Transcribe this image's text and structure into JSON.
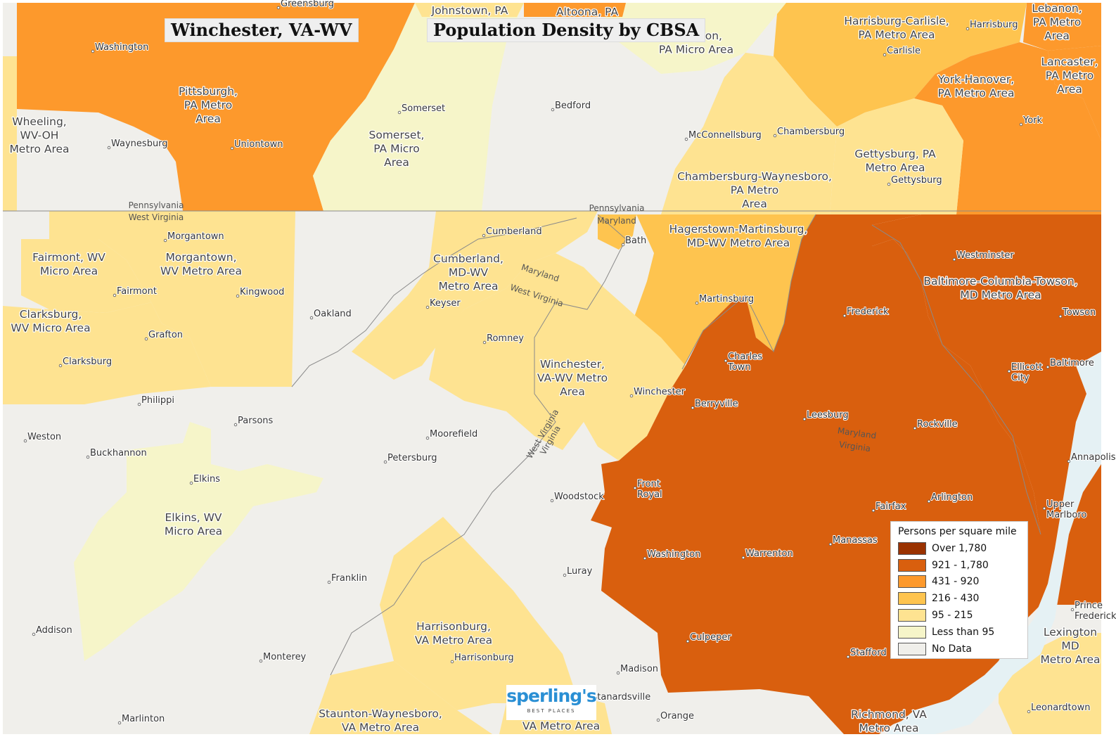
{
  "title": "Winchester, VA-WV",
  "subtitle": "Population Density by CBSA",
  "legend": {
    "title": "Persons per square mile",
    "items": [
      {
        "label": "Over 1,780",
        "color": "#9a3200"
      },
      {
        "label": "921 - 1,780",
        "color": "#d95f0e"
      },
      {
        "label": "431 - 920",
        "color": "#fd992c"
      },
      {
        "label": "216 - 430",
        "color": "#fec44f"
      },
      {
        "label": "95 - 215",
        "color": "#fee391"
      },
      {
        "label": "Less than 95",
        "color": "#f6f5c9"
      },
      {
        "label": "No Data",
        "color": "#f0efeb"
      }
    ]
  },
  "logo": {
    "brand": "sperling's",
    "tagline": "BEST PLACES"
  },
  "metro_areas": [
    {
      "name": "Pittsburgh, PA Metro Area",
      "lines": [
        "Pittsburgh,",
        "PA Metro",
        "Area"
      ]
    },
    {
      "name": "Wheeling, WV-OH Metro Area",
      "lines": [
        "Wheeling,",
        "WV-OH",
        "Metro Area"
      ]
    },
    {
      "name": "Somerset, PA Micro Area",
      "lines": [
        "Somerset,",
        "PA Micro",
        "Area"
      ]
    },
    {
      "name": "Huntingdon, PA Micro Area",
      "lines": [
        "ntingdon,",
        "PA Micro Area"
      ]
    },
    {
      "name": "Harrisburg-Carlisle, PA Metro Area",
      "lines": [
        "Harrisburg-Carlisle,",
        "PA Metro Area"
      ]
    },
    {
      "name": "Lebanon, PA Metro Area",
      "lines": [
        "Lebanon,",
        "PA Metro",
        "Area"
      ]
    },
    {
      "name": "Lancaster, PA Metro Area",
      "lines": [
        "Lancaster,",
        "PA Metro",
        "Area"
      ]
    },
    {
      "name": "York-Hanover, PA Metro Area",
      "lines": [
        "York-Hanover,",
        "PA Metro Area"
      ]
    },
    {
      "name": "Gettysburg, PA Metro Area",
      "lines": [
        "Gettysburg, PA",
        "Metro Area"
      ]
    },
    {
      "name": "Chambersburg-Waynesboro, PA Metro Area",
      "lines": [
        "Chambersburg-Waynesboro,",
        "PA Metro",
        "Area"
      ]
    },
    {
      "name": "Hagerstown-Martinsburg, MD-WV Metro Area",
      "lines": [
        "Hagerstown-Martinsburg,",
        "MD-WV Metro Area"
      ]
    },
    {
      "name": "Cumberland, MD-WV Metro Area",
      "lines": [
        "Cumberland,",
        "MD-WV",
        "Metro Area"
      ]
    },
    {
      "name": "Fairmont, WV Micro Area",
      "lines": [
        "Fairmont, WV",
        "Micro Area"
      ]
    },
    {
      "name": "Morgantown, WV Metro Area",
      "lines": [
        "Morgantown,",
        "WV Metro Area"
      ]
    },
    {
      "name": "Clarksburg, WV Micro Area",
      "lines": [
        "Clarksburg,",
        "WV Micro Area"
      ]
    },
    {
      "name": "Baltimore-Columbia-Towson, MD Metro Area",
      "lines": [
        "Baltimore-Columbia-Towson,",
        "MD Metro Area"
      ]
    },
    {
      "name": "Winchester, VA-WV Metro Area",
      "lines": [
        "Winchester,",
        "VA-WV Metro",
        "Area"
      ]
    },
    {
      "name": "Elkins, WV Micro Area",
      "lines": [
        "Elkins, WV",
        "Micro Area"
      ]
    },
    {
      "name": "Harrisonburg, VA Metro Area",
      "lines": [
        "Harrisonburg,",
        "VA Metro Area"
      ]
    },
    {
      "name": "Staunton-Waynesboro, VA Metro Area",
      "lines": [
        "Staunton-Waynesboro,",
        "VA Metro Area"
      ]
    },
    {
      "name": "Charlottesville, VA Metro Area",
      "lines": [
        "e,",
        "VA Metro Area"
      ]
    },
    {
      "name": "Richmond, VA Metro Area",
      "lines": [
        "Richmond, VA",
        "Metro Area"
      ]
    },
    {
      "name": "Lexington Park, MD Metro Area",
      "lines": [
        "Lexington",
        "MD",
        "Metro Area"
      ]
    },
    {
      "name": "Johnstown, PA",
      "lines": [
        "Johnstown, PA"
      ]
    },
    {
      "name": "Altoona, PA",
      "lines": [
        "Altoona, PA"
      ]
    }
  ],
  "cities": [
    "Greensburg",
    "Washington",
    "Waynesburg",
    "Uniontown",
    "Somerset",
    "Bedford",
    "McConnellsburg",
    "Chambersburg",
    "Harrisburg",
    "Carlisle",
    "York",
    "Gettysburg",
    "Morgantown",
    "Fairmont",
    "Kingwood",
    "Grafton",
    "Clarksburg",
    "Oakland",
    "Cumberland",
    "Keyser",
    "Romney",
    "Bath",
    "Martinsburg",
    "Charles Town",
    "Frederick",
    "Westminster",
    "Towson",
    "Baltimore",
    "Ellicott City",
    "Winchester",
    "Berryville",
    "Leesburg",
    "Rockville",
    "Annapolis",
    "Philippi",
    "Parsons",
    "Weston",
    "Buckhannon",
    "Moorefield",
    "Petersburg",
    "Elkins",
    "Woodstock",
    "Front Royal",
    "Fairfax",
    "Arlington",
    "Upper Marlboro",
    "Manassas",
    "Washington",
    "Warrenton",
    "Luray",
    "Franklin",
    "Addison",
    "Culpeper",
    "Stafford",
    "Prince Frederick",
    "Harrisonburg",
    "Madison",
    "Monterey",
    "Marlinton",
    "Stanardsville",
    "Orange",
    "Leonardtown"
  ],
  "state_labels": [
    "Pennsylvania",
    "West Virginia",
    "Pennsylvania",
    "Maryland",
    "Maryland",
    "West Virginia",
    "West Virginia",
    "Virginia",
    "Maryland",
    "Virginia"
  ]
}
